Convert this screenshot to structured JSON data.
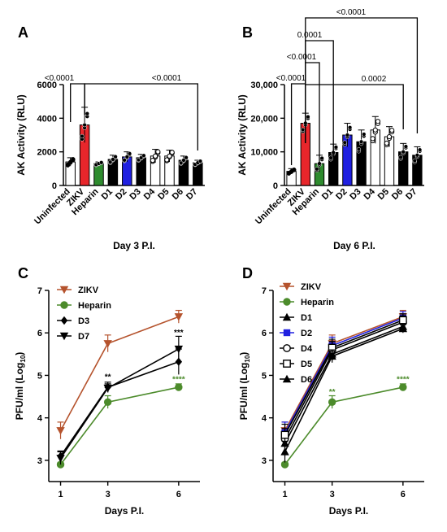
{
  "colors": {
    "zikv_red": "#e8262b",
    "heparin_green": "#2e8b2e",
    "d2_blue": "#2020e0",
    "zikv_brown": "#b5532d",
    "line_green": "#4c8b2b",
    "black": "#000000",
    "white": "#ffffff"
  },
  "chart_data": [
    {
      "panel": "A",
      "type": "bar",
      "xlabel": "Day 3 P.I.",
      "ylabel": "AK Activity (RLU)",
      "ylim": [
        0,
        6000
      ],
      "yticks": [
        "0",
        "2000",
        "4000",
        "6000"
      ],
      "categories": [
        "Uninfected",
        "ZIKV",
        "Heparin",
        "D1",
        "D2",
        "D3",
        "D4",
        "D5",
        "D6",
        "D7"
      ],
      "values": [
        1400,
        3600,
        1300,
        1550,
        1700,
        1650,
        1750,
        1750,
        1500,
        1350
      ],
      "errors": [
        250,
        1050,
        100,
        250,
        300,
        200,
        400,
        350,
        250,
        150
      ],
      "fills": [
        "white",
        "zikv_red",
        "heparin_green",
        "black",
        "d2_blue",
        "black",
        "white",
        "white",
        "black",
        "black"
      ],
      "significance": [
        {
          "from": "Uninfected",
          "to": "ZIKV",
          "label": "<0.0001"
        },
        {
          "from": "ZIKV",
          "to": "D7",
          "label": "<0.0001"
        }
      ]
    },
    {
      "panel": "B",
      "type": "bar",
      "xlabel": "Day 6 P.I.",
      "ylabel": "AK Activity (RLU)",
      "ylim": [
        0,
        30000
      ],
      "yticks": [
        "0",
        "10,000",
        "20,000",
        "30,000"
      ],
      "categories": [
        "Uninfected",
        "ZIKV",
        "Heparin",
        "D1",
        "D2",
        "D3",
        "D4",
        "D5",
        "D6",
        "D7"
      ],
      "values": [
        4200,
        18500,
        6500,
        9800,
        15000,
        13000,
        16500,
        14500,
        10000,
        9000
      ],
      "errors": [
        800,
        3000,
        2500,
        2500,
        3500,
        3500,
        4000,
        3000,
        2500,
        2500
      ],
      "fills": [
        "white",
        "zikv_red",
        "heparin_green",
        "black",
        "d2_blue",
        "black",
        "white",
        "white",
        "black",
        "black"
      ],
      "significance": [
        {
          "from": "Uninfected",
          "to": "ZIKV",
          "label": "<0.0001"
        },
        {
          "from": "ZIKV",
          "to": "Heparin",
          "label": "<0.0001"
        },
        {
          "from": "ZIKV",
          "to": "D1",
          "label": "0.0001"
        },
        {
          "from": "ZIKV",
          "to": "D6",
          "label": "0.0002"
        },
        {
          "from": "ZIKV",
          "to": "D7",
          "label": "<0.0001"
        }
      ]
    },
    {
      "panel": "C",
      "type": "line",
      "xlabel": "Days P.I.",
      "ylabel": "PFU/ml (Log",
      "ylabel_sub": "10",
      "ylabel_close": ")",
      "x": [
        1,
        3,
        6
      ],
      "xticks": [
        "1",
        "3",
        "6"
      ],
      "ylim": [
        2.5,
        7
      ],
      "yticks": [
        "3",
        "4",
        "5",
        "6",
        "7"
      ],
      "series": [
        {
          "name": "ZIKV",
          "values": [
            3.7,
            5.75,
            6.38
          ],
          "errors": [
            0.2,
            0.2,
            0.15
          ],
          "color": "zikv_brown",
          "marker": "tri-down"
        },
        {
          "name": "Heparin",
          "values": [
            2.9,
            4.37,
            4.72
          ],
          "errors": [
            0.05,
            0.15,
            0.08
          ],
          "color": "line_green",
          "marker": "circle"
        },
        {
          "name": "D3",
          "values": [
            3.1,
            4.72,
            5.32
          ],
          "errors": [
            0.12,
            0.12,
            0.3
          ],
          "color": "black",
          "marker": "diamond"
        },
        {
          "name": "D7",
          "values": [
            3.05,
            4.7,
            5.62
          ],
          "errors": [
            0.15,
            0.1,
            0.3
          ],
          "color": "black",
          "marker": "tri-down"
        }
      ],
      "annotations": [
        {
          "x": 3,
          "y": 4.9,
          "label": "**",
          "color": "black"
        },
        {
          "x": 6,
          "y": 5.95,
          "label": "***",
          "color": "black"
        },
        {
          "x": 6,
          "y": 4.85,
          "label": "****",
          "color": "line_green"
        }
      ]
    },
    {
      "panel": "D",
      "type": "line",
      "xlabel": "Days P.I.",
      "ylabel": "PFU/ml (Log",
      "ylabel_sub": "10",
      "ylabel_close": ")",
      "x": [
        1,
        3,
        6
      ],
      "xticks": [
        "1",
        "3",
        "6"
      ],
      "ylim": [
        2.5,
        7
      ],
      "yticks": [
        "3",
        "4",
        "5",
        "6",
        "7"
      ],
      "series": [
        {
          "name": "ZIKV",
          "values": [
            3.7,
            5.75,
            6.38
          ],
          "errors": [
            0.2,
            0.2,
            0.15
          ],
          "color": "zikv_brown",
          "marker": "tri-down"
        },
        {
          "name": "Heparin",
          "values": [
            2.9,
            4.37,
            4.72
          ],
          "errors": [
            0.05,
            0.15,
            0.08
          ],
          "color": "line_green",
          "marker": "circle"
        },
        {
          "name": "D1",
          "values": [
            3.4,
            5.5,
            6.15
          ],
          "errors": [
            0.3,
            0.15,
            0.1
          ],
          "color": "black",
          "marker": "tri-up"
        },
        {
          "name": "D2",
          "values": [
            3.65,
            5.7,
            6.35
          ],
          "errors": [
            0.25,
            0.2,
            0.15
          ],
          "color": "d2_blue",
          "marker": "square"
        },
        {
          "name": "D4",
          "values": [
            3.5,
            5.6,
            6.25
          ],
          "errors": [
            0.25,
            0.2,
            0.15
          ],
          "color": "black",
          "marker": "open-circle"
        },
        {
          "name": "D5",
          "values": [
            3.6,
            5.65,
            6.3
          ],
          "errors": [
            0.25,
            0.2,
            0.15
          ],
          "color": "black",
          "marker": "open-square"
        },
        {
          "name": "D6",
          "values": [
            3.2,
            5.45,
            6.1
          ],
          "errors": [
            0.25,
            0.15,
            0.1
          ],
          "color": "black",
          "marker": "tri-up"
        }
      ],
      "annotations": [
        {
          "x": 3,
          "y": 4.55,
          "label": "**",
          "color": "line_green"
        },
        {
          "x": 6,
          "y": 4.85,
          "label": "****",
          "color": "line_green"
        }
      ]
    }
  ]
}
